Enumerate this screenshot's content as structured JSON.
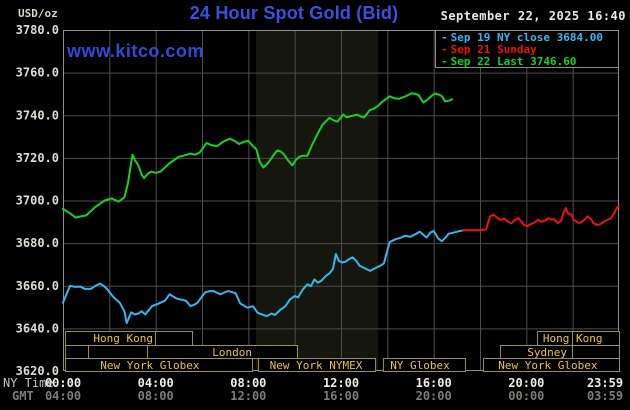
{
  "header": {
    "unit_label": "USD/oz",
    "title": "24 Hour Spot Gold (Bid)",
    "timestamp": "September 22, 2025 16:40",
    "watermark": "www.kitco.com"
  },
  "legend": [
    {
      "label": "Sep 19 NY close 3684.00",
      "color": "#36b6f0"
    },
    {
      "label": "Sep 21 Sunday",
      "color": "#ee1111"
    },
    {
      "label": "Sep 22 Last 3746.60",
      "color": "#17d21f"
    }
  ],
  "colors": {
    "background": "#000000",
    "title": "#3a50e2",
    "watermark": "#3648d6",
    "date": "#e8e8e8",
    "grid": "#4e4e4e",
    "plot_border": "#8f8f8f",
    "band": "#15170e",
    "session_border": "#98905a",
    "session_text": "#e6c63e",
    "series_green": "#17d21f",
    "series_cyan": "#36b6f0",
    "series_red": "#ee1111"
  },
  "chart_data": {
    "type": "line",
    "title": "24 Hour Spot Gold (Bid)",
    "y_axis": {
      "unit": "USD/oz",
      "min": 3620,
      "max": 3780,
      "tick_step": 20
    },
    "x_axis": {
      "label": "NY Time",
      "secondary_label": "GMT",
      "ticks": [
        {
          "h": 0,
          "ny": "00:00",
          "gmt": "04:00"
        },
        {
          "h": 4,
          "ny": "04:00",
          "gmt": "08:00"
        },
        {
          "h": 8,
          "ny": "08:00",
          "gmt": "12:00"
        },
        {
          "h": 12,
          "ny": "12:00",
          "gmt": "16:00"
        },
        {
          "h": 16,
          "ny": "16:00",
          "gmt": "20:00"
        },
        {
          "h": 20,
          "ny": "20:00",
          "gmt": "00:00"
        },
        {
          "h": 23.983,
          "ny": "23:59",
          "gmt": "03:59"
        }
      ]
    },
    "nymex_floor_band_hours": [
      8.33,
      13.6
    ],
    "series": [
      {
        "id": "sep19-ny-close",
        "name": "Sep 19 NY close",
        "close_value": 3684.0,
        "color": "#36b6f0",
        "points": [
          [
            0,
            3652
          ],
          [
            0.15,
            3656
          ],
          [
            0.3,
            3660
          ],
          [
            0.5,
            3659.5
          ],
          [
            0.75,
            3659.5
          ],
          [
            0.95,
            3658.5
          ],
          [
            1.2,
            3658.5
          ],
          [
            1.4,
            3660
          ],
          [
            1.6,
            3661
          ],
          [
            1.75,
            3660
          ],
          [
            1.9,
            3658.5
          ],
          [
            2.15,
            3655
          ],
          [
            2.3,
            3653.5
          ],
          [
            2.45,
            3652
          ],
          [
            2.65,
            3648
          ],
          [
            2.75,
            3642.5
          ],
          [
            2.85,
            3645
          ],
          [
            2.95,
            3647.5
          ],
          [
            3.1,
            3646.5
          ],
          [
            3.25,
            3647
          ],
          [
            3.4,
            3648
          ],
          [
            3.55,
            3646.5
          ],
          [
            3.7,
            3648.5
          ],
          [
            3.85,
            3650.5
          ],
          [
            4.1,
            3651.5
          ],
          [
            4.4,
            3653
          ],
          [
            4.6,
            3656
          ],
          [
            4.75,
            3655
          ],
          [
            4.9,
            3654
          ],
          [
            5.1,
            3653.5
          ],
          [
            5.3,
            3653
          ],
          [
            5.5,
            3650.5
          ],
          [
            5.65,
            3651
          ],
          [
            5.8,
            3652
          ],
          [
            6,
            3655
          ],
          [
            6.15,
            3657
          ],
          [
            6.35,
            3657.5
          ],
          [
            6.5,
            3657.5
          ],
          [
            6.8,
            3656
          ],
          [
            7,
            3657
          ],
          [
            7.15,
            3657.5
          ],
          [
            7.3,
            3657
          ],
          [
            7.45,
            3656.5
          ],
          [
            7.65,
            3651.7
          ],
          [
            7.95,
            3649.7
          ],
          [
            8.2,
            3650.4
          ],
          [
            8.4,
            3647.3
          ],
          [
            8.6,
            3646.5
          ],
          [
            8.8,
            3645.7
          ],
          [
            9,
            3647
          ],
          [
            9.15,
            3646.3
          ],
          [
            9.4,
            3648.9
          ],
          [
            9.6,
            3650.4
          ],
          [
            9.8,
            3653.6
          ],
          [
            10,
            3655.2
          ],
          [
            10.15,
            3654.5
          ],
          [
            10.35,
            3658.3
          ],
          [
            10.55,
            3660.7
          ],
          [
            10.7,
            3659.8
          ],
          [
            10.85,
            3663
          ],
          [
            11,
            3661.5
          ],
          [
            11.15,
            3662.3
          ],
          [
            11.35,
            3664.6
          ],
          [
            11.5,
            3665.8
          ],
          [
            11.65,
            3667.8
          ],
          [
            11.78,
            3674.9
          ],
          [
            11.9,
            3671.7
          ],
          [
            12.05,
            3670.9
          ],
          [
            12.2,
            3671.3
          ],
          [
            12.35,
            3672.5
          ],
          [
            12.5,
            3673.3
          ],
          [
            12.65,
            3671.8
          ],
          [
            12.8,
            3669.4
          ],
          [
            12.95,
            3668.6
          ],
          [
            13.1,
            3667.8
          ],
          [
            13.25,
            3667
          ],
          [
            13.4,
            3667.8
          ],
          [
            13.55,
            3668.6
          ],
          [
            13.7,
            3669.4
          ],
          [
            13.85,
            3670.5
          ],
          [
            14,
            3676.5
          ],
          [
            14.1,
            3680.5
          ],
          [
            14.35,
            3681.8
          ],
          [
            14.55,
            3682.4
          ],
          [
            14.75,
            3683.4
          ],
          [
            15,
            3683
          ],
          [
            15.2,
            3684.1
          ],
          [
            15.4,
            3685.4
          ],
          [
            15.55,
            3684
          ],
          [
            15.7,
            3682.6
          ],
          [
            15.85,
            3684.9
          ],
          [
            16,
            3685.7
          ],
          [
            16.2,
            3682.1
          ],
          [
            16.35,
            3680.9
          ],
          [
            16.5,
            3682.5
          ],
          [
            16.65,
            3684.4
          ],
          [
            16.85,
            3684.9
          ],
          [
            17.05,
            3685.5
          ],
          [
            17.27,
            3686
          ]
        ]
      },
      {
        "id": "sep21-sunday",
        "name": "Sep 21 Sunday",
        "color": "#ee1111",
        "points": [
          [
            17.27,
            3686
          ],
          [
            17.6,
            3686
          ],
          [
            18,
            3686
          ],
          [
            18.26,
            3686.4
          ],
          [
            18.35,
            3689.5
          ],
          [
            18.43,
            3692.5
          ],
          [
            18.6,
            3693.3
          ],
          [
            18.75,
            3691.7
          ],
          [
            18.9,
            3690.9
          ],
          [
            19.05,
            3691.5
          ],
          [
            19.2,
            3690.1
          ],
          [
            19.35,
            3689.3
          ],
          [
            19.5,
            3690.9
          ],
          [
            19.65,
            3691.7
          ],
          [
            19.8,
            3690
          ],
          [
            19.9,
            3688.5
          ],
          [
            20.05,
            3688
          ],
          [
            20.2,
            3689
          ],
          [
            20.35,
            3689.7
          ],
          [
            20.5,
            3690.9
          ],
          [
            20.65,
            3690
          ],
          [
            20.8,
            3690.5
          ],
          [
            20.95,
            3691.7
          ],
          [
            21.1,
            3691
          ],
          [
            21.2,
            3691.3
          ],
          [
            21.35,
            3689.3
          ],
          [
            21.5,
            3690.5
          ],
          [
            21.6,
            3694
          ],
          [
            21.7,
            3696.4
          ],
          [
            21.8,
            3694
          ],
          [
            21.95,
            3693.3
          ],
          [
            22.05,
            3690.9
          ],
          [
            22.25,
            3689.5
          ],
          [
            22.35,
            3689.7
          ],
          [
            22.5,
            3690.9
          ],
          [
            22.65,
            3692.5
          ],
          [
            22.8,
            3691.2
          ],
          [
            22.9,
            3689.3
          ],
          [
            23.1,
            3688.5
          ],
          [
            23.2,
            3689
          ],
          [
            23.35,
            3690
          ],
          [
            23.5,
            3690.9
          ],
          [
            23.65,
            3691.7
          ],
          [
            23.8,
            3694.1
          ],
          [
            23.9,
            3696.4
          ],
          [
            23.99,
            3697.5
          ]
        ]
      },
      {
        "id": "sep22-today",
        "name": "Sep 22 Last",
        "last_value": 3746.6,
        "color": "#17d21f",
        "points": [
          [
            0,
            3696
          ],
          [
            0.3,
            3694
          ],
          [
            0.55,
            3692
          ],
          [
            0.75,
            3692.5
          ],
          [
            1,
            3693
          ],
          [
            1.4,
            3697
          ],
          [
            1.8,
            3700
          ],
          [
            2.1,
            3701
          ],
          [
            2.4,
            3699.5
          ],
          [
            2.65,
            3701.5
          ],
          [
            2.8,
            3708
          ],
          [
            3,
            3721.5
          ],
          [
            3.1,
            3719
          ],
          [
            3.25,
            3716.5
          ],
          [
            3.4,
            3712
          ],
          [
            3.5,
            3710.5
          ],
          [
            3.65,
            3712.5
          ],
          [
            3.8,
            3713.5
          ],
          [
            4,
            3713
          ],
          [
            4.2,
            3713.5
          ],
          [
            4.6,
            3717.5
          ],
          [
            4.8,
            3719
          ],
          [
            5,
            3720.5
          ],
          [
            5.2,
            3721
          ],
          [
            5.5,
            3722
          ],
          [
            5.7,
            3721.5
          ],
          [
            5.9,
            3722.5
          ],
          [
            6.2,
            3727
          ],
          [
            6.4,
            3726
          ],
          [
            6.65,
            3725.5
          ],
          [
            6.9,
            3727.5
          ],
          [
            7.2,
            3729
          ],
          [
            7.4,
            3728
          ],
          [
            7.6,
            3726.5
          ],
          [
            7.8,
            3727.5
          ],
          [
            8,
            3728
          ],
          [
            8.2,
            3725.5
          ],
          [
            8.35,
            3724
          ],
          [
            8.5,
            3718
          ],
          [
            8.65,
            3715.5
          ],
          [
            8.8,
            3717
          ],
          [
            8.95,
            3719
          ],
          [
            9.1,
            3721.5
          ],
          [
            9.25,
            3723.5
          ],
          [
            9.4,
            3723
          ],
          [
            9.55,
            3721.5
          ],
          [
            9.7,
            3719
          ],
          [
            9.9,
            3716.5
          ],
          [
            10.05,
            3719
          ],
          [
            10.2,
            3720.5
          ],
          [
            10.35,
            3721
          ],
          [
            10.55,
            3721
          ],
          [
            10.75,
            3726
          ],
          [
            11,
            3731.5
          ],
          [
            11.2,
            3735.5
          ],
          [
            11.5,
            3738.8
          ],
          [
            11.7,
            3737.5
          ],
          [
            11.85,
            3737
          ],
          [
            12.1,
            3740.3
          ],
          [
            12.25,
            3739
          ],
          [
            12.4,
            3739.5
          ],
          [
            12.55,
            3740
          ],
          [
            12.7,
            3740.3
          ],
          [
            12.85,
            3739.5
          ],
          [
            13,
            3739
          ],
          [
            13.25,
            3742.5
          ],
          [
            13.4,
            3743
          ],
          [
            13.55,
            3744
          ],
          [
            13.8,
            3746.5
          ],
          [
            14,
            3748
          ],
          [
            14.1,
            3748.9
          ],
          [
            14.3,
            3748
          ],
          [
            14.5,
            3747.7
          ],
          [
            14.7,
            3748.5
          ],
          [
            14.9,
            3749.5
          ],
          [
            15.05,
            3750.3
          ],
          [
            15.2,
            3750
          ],
          [
            15.35,
            3749.5
          ],
          [
            15.55,
            3746
          ],
          [
            15.7,
            3747
          ],
          [
            15.85,
            3748.5
          ],
          [
            16.05,
            3750.2
          ],
          [
            16.2,
            3749.8
          ],
          [
            16.35,
            3749
          ],
          [
            16.5,
            3746.5
          ],
          [
            16.65,
            3746.8
          ],
          [
            16.8,
            3747.5
          ]
        ]
      }
    ],
    "sessions": [
      {
        "boxes": [
          [
            0.09,
            3.97
          ],
          [
            3.97,
            5.57
          ],
          [
            20.46,
            21.97
          ],
          [
            21.97,
            24
          ]
        ],
        "labels": [
          {
            "text": "Hong Kong",
            "h": 2.6
          },
          {
            "text": "Hong Kong",
            "h": 22.0
          }
        ]
      },
      {
        "boxes": [
          [
            0.09,
            1.08
          ],
          [
            1.08,
            3.63
          ],
          [
            3.63,
            10.1
          ],
          [
            18.86,
            21.97
          ],
          [
            21.97,
            24
          ]
        ],
        "labels": [
          {
            "text": "London",
            "h": 7.3
          },
          {
            "text": "Sydney",
            "h": 20.9
          }
        ]
      },
      {
        "boxes": [
          [
            0.09,
            8.16
          ],
          [
            8.42,
            13.47
          ],
          [
            13.81,
            17.35
          ],
          [
            18.13,
            24
          ]
        ],
        "labels": [
          {
            "text": "New York Globex",
            "h": 3.75
          },
          {
            "text": "New York NYMEX",
            "h": 10.92
          },
          {
            "text": "NY Globex",
            "h": 15.41
          },
          {
            "text": "New York Globex",
            "h": 20.93
          }
        ]
      }
    ]
  }
}
